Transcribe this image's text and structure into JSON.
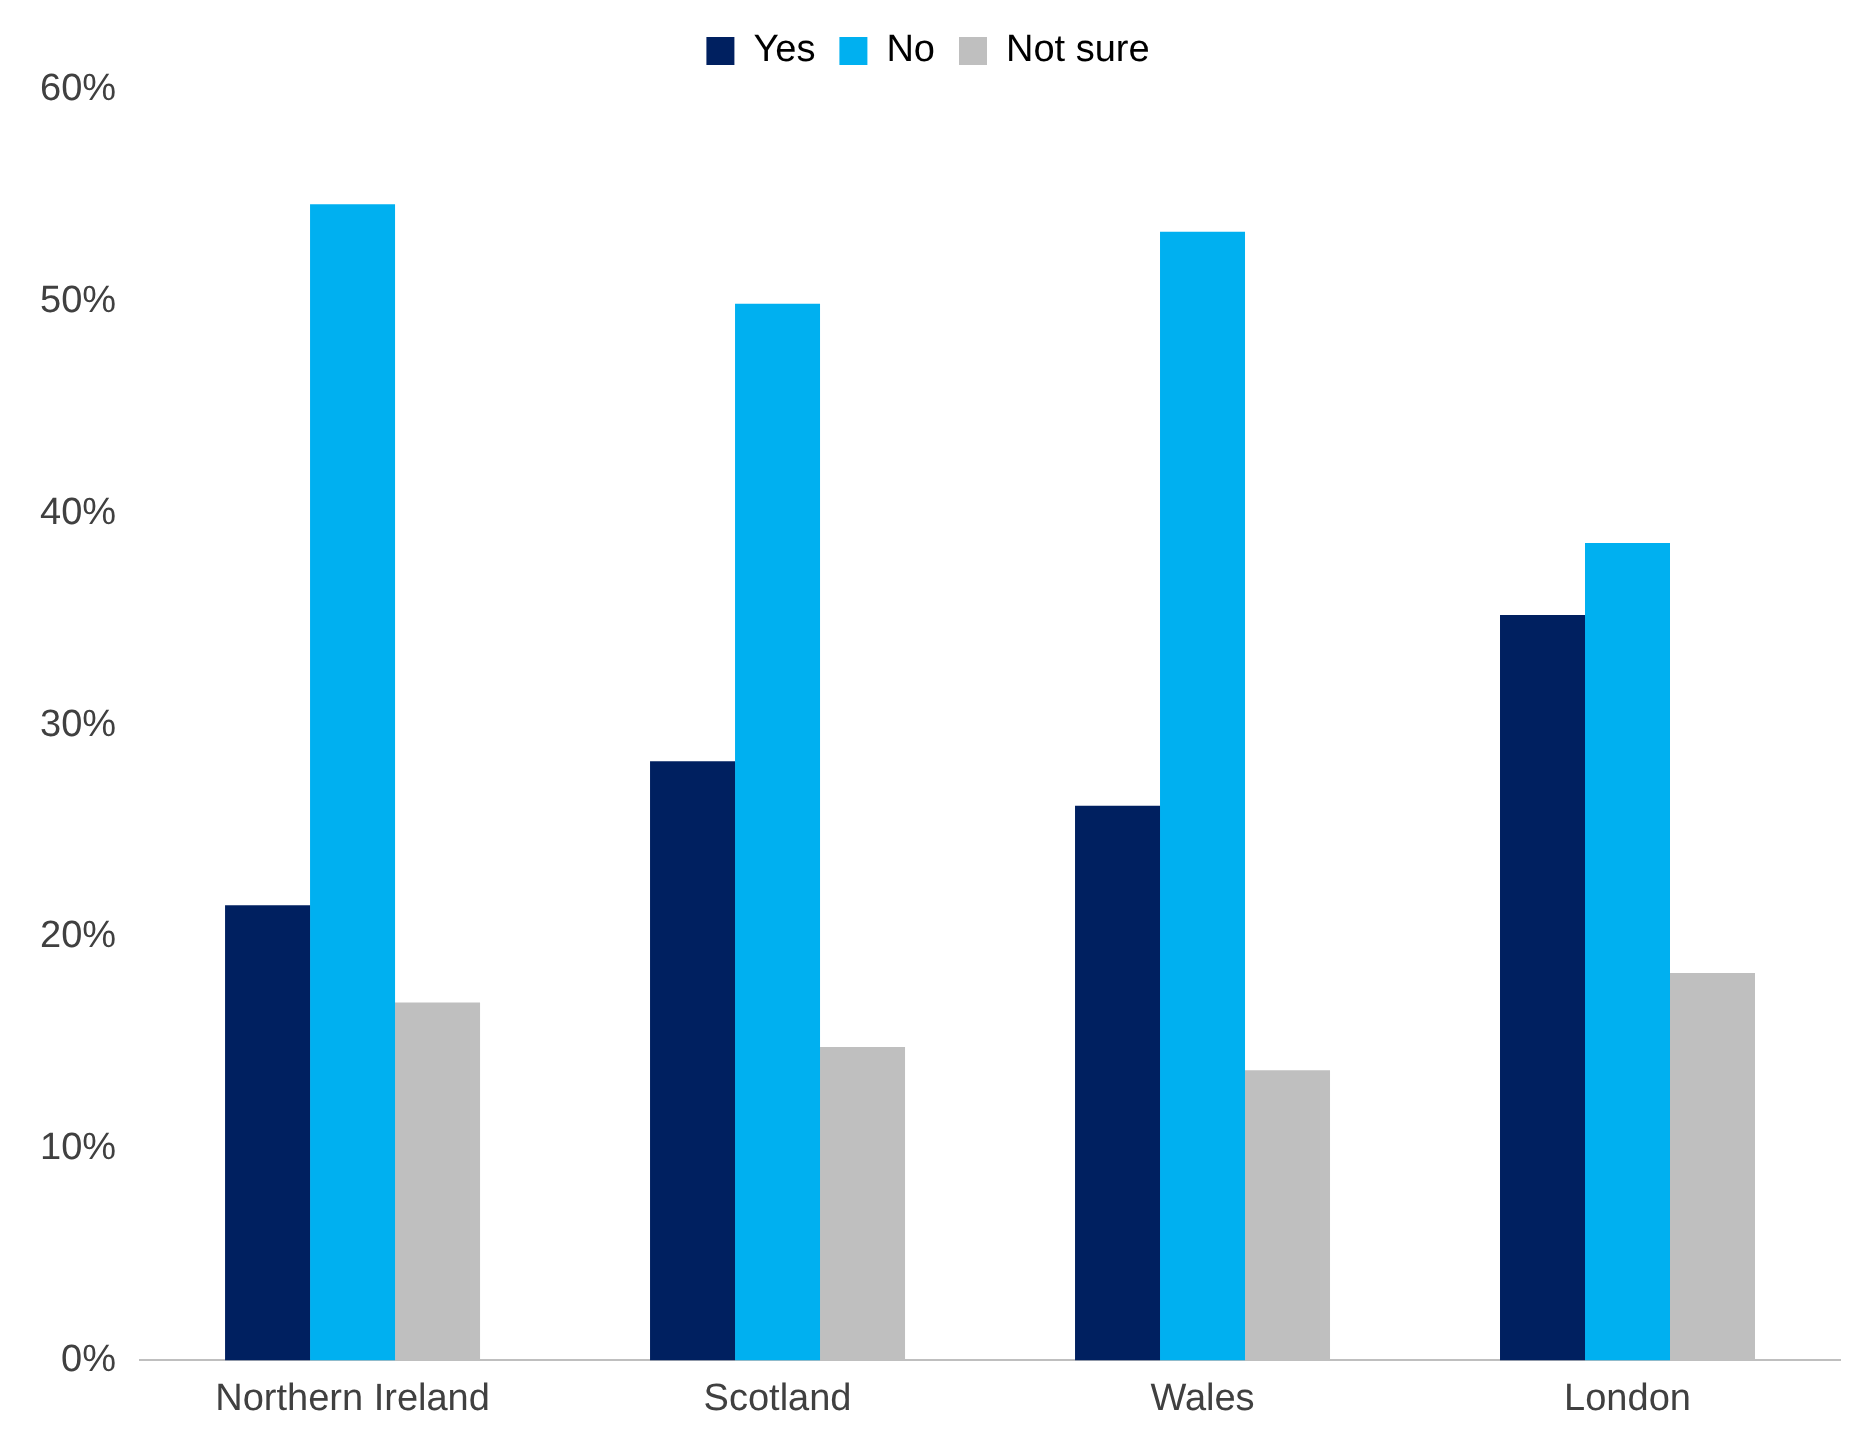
{
  "chart_data": {
    "type": "bar",
    "categories": [
      "Northern Ireland",
      "Scotland",
      "Wales",
      "London"
    ],
    "series": [
      {
        "name": "Yes",
        "color": "#002060",
        "values": [
          21.5,
          28.3,
          26.2,
          35.2
        ]
      },
      {
        "name": "No",
        "color": "#00b0f0",
        "values": [
          54.6,
          49.9,
          53.3,
          38.6
        ]
      },
      {
        "name": "Not sure",
        "color": "#bfbfbf",
        "values": [
          16.9,
          14.8,
          13.7,
          18.3
        ]
      }
    ],
    "ylim": [
      0,
      60
    ],
    "yticks": [
      {
        "value": 0,
        "label": "0%"
      },
      {
        "value": 10,
        "label": "10%"
      },
      {
        "value": 20,
        "label": "20%"
      },
      {
        "value": 30,
        "label": "30%"
      },
      {
        "value": 40,
        "label": "40%"
      },
      {
        "value": 50,
        "label": "50%"
      },
      {
        "value": 60,
        "label": "60%"
      }
    ],
    "grid": false,
    "legend": "top"
  }
}
